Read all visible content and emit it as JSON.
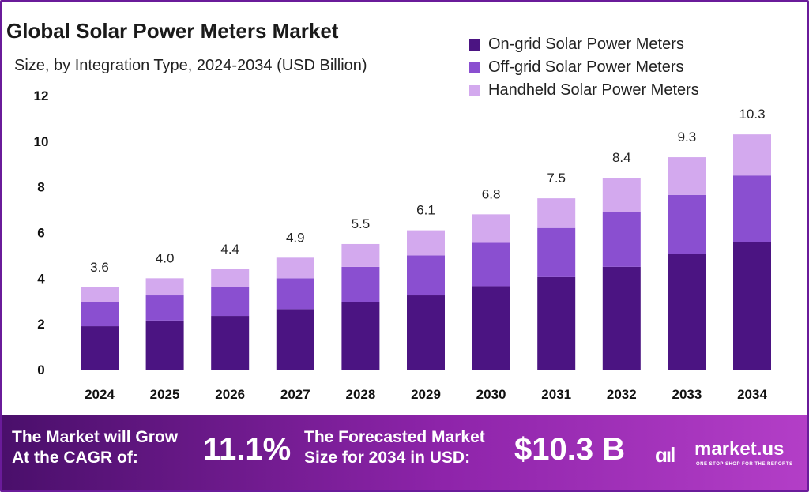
{
  "title": "Global Solar Power Meters Market",
  "subtitle": "Size, by Integration Type, 2024-2034 (USD Billion)",
  "colors": {
    "on_grid": "#4b1482",
    "off_grid": "#8a4fd0",
    "handheld": "#d3a9ee",
    "frame": "#6a1b9a"
  },
  "chart_data": {
    "type": "bar",
    "stacked": true,
    "categories": [
      "2024",
      "2025",
      "2026",
      "2027",
      "2028",
      "2029",
      "2030",
      "2031",
      "2032",
      "2033",
      "2034"
    ],
    "series": [
      {
        "name": "On-grid Solar Power Meters",
        "values": [
          1.9,
          2.15,
          2.35,
          2.65,
          2.95,
          3.25,
          3.65,
          4.05,
          4.5,
          5.05,
          5.6
        ]
      },
      {
        "name": "Off-grid Solar Power Meters",
        "values": [
          1.05,
          1.1,
          1.25,
          1.35,
          1.55,
          1.75,
          1.9,
          2.15,
          2.4,
          2.6,
          2.9
        ]
      },
      {
        "name": "Handheld Solar Power Meters",
        "values": [
          0.65,
          0.75,
          0.8,
          0.9,
          1.0,
          1.1,
          1.25,
          1.3,
          1.5,
          1.65,
          1.8
        ]
      }
    ],
    "totals": [
      3.6,
      4.0,
      4.4,
      4.9,
      5.5,
      6.1,
      6.8,
      7.5,
      8.4,
      9.3,
      10.3
    ],
    "total_labels": [
      "3.6",
      "4.0",
      "4.4",
      "4.9",
      "5.5",
      "6.1",
      "6.8",
      "7.5",
      "8.4",
      "9.3",
      "10.3"
    ],
    "yticks": [
      0,
      2,
      4,
      6,
      8,
      10,
      12
    ],
    "ylim": [
      0,
      12
    ],
    "legend_position": "top-right",
    "grid": false
  },
  "footer": {
    "cagr_label_line1": "The Market will Grow",
    "cagr_label_line2": "At the CAGR of:",
    "cagr_value": "11.1%",
    "forecast_label_line1": "The Forecasted Market",
    "forecast_label_line2": "Size for 2034 in USD:",
    "forecast_value": "$10.3 B",
    "logo_mark": "ɑıl",
    "logo_text": "market.us",
    "logo_tagline": "ONE STOP SHOP FOR THE REPORTS"
  }
}
